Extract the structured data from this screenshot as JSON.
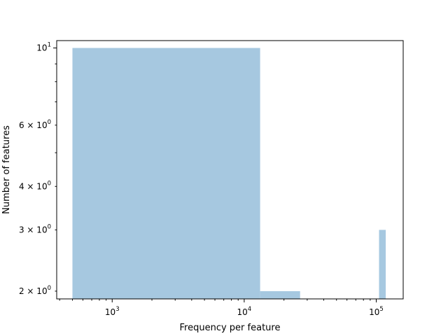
{
  "chart_data": {
    "type": "bar",
    "title": "",
    "xlabel": "Frequency per feature",
    "ylabel": "Number of features",
    "x_scale": "log",
    "y_scale": "log",
    "xlim": [
      380,
      160000
    ],
    "ylim": [
      1.9,
      10.5
    ],
    "grid": false,
    "bar_color": "#a6c8e0",
    "bars": [
      {
        "x0": 500,
        "x1": 13200,
        "value": 10
      },
      {
        "x0": 13200,
        "x1": 26500,
        "value": 2
      },
      {
        "x0": 105000,
        "x1": 118000,
        "value": 3
      }
    ],
    "x_ticks": [
      {
        "value": 1000,
        "base": "10",
        "exp": "3"
      },
      {
        "value": 10000,
        "base": "10",
        "exp": "4"
      },
      {
        "value": 100000,
        "base": "10",
        "exp": "5"
      }
    ],
    "y_ticks": [
      {
        "value": 10,
        "base": "10",
        "exp": "1"
      },
      {
        "value": 6,
        "base": "6 × 10",
        "exp": "0"
      },
      {
        "value": 4,
        "base": "4 × 10",
        "exp": "0"
      },
      {
        "value": 3,
        "base": "3 × 10",
        "exp": "0"
      },
      {
        "value": 2,
        "base": "2 × 10",
        "exp": "0"
      }
    ]
  }
}
